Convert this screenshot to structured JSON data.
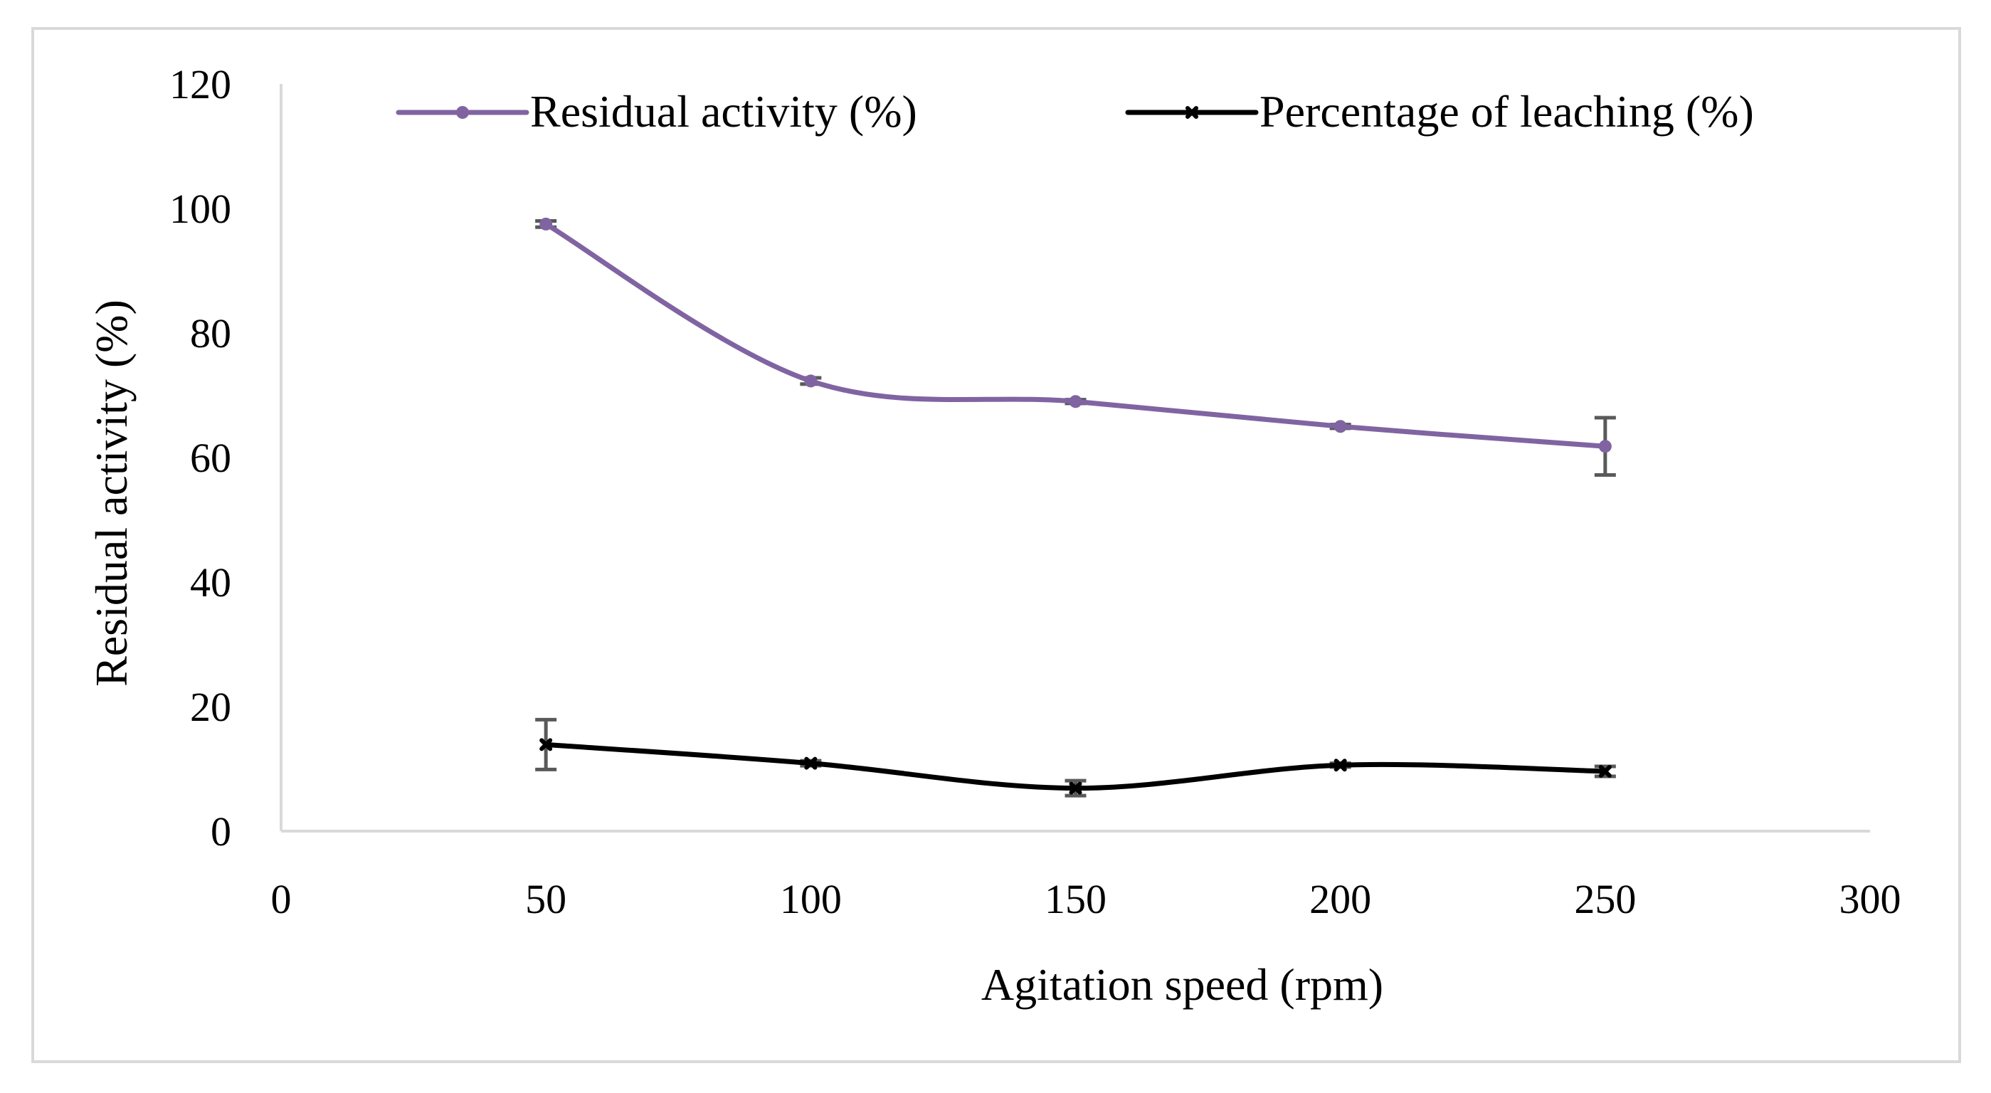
{
  "chart_data": {
    "type": "line",
    "title": "",
    "xlabel": "Agitation speed (rpm)",
    "ylabel": "Residual activity (%)",
    "xlim": [
      0,
      300
    ],
    "ylim": [
      0,
      120
    ],
    "xticks": [
      0,
      50,
      100,
      150,
      200,
      250,
      300
    ],
    "yticks": [
      0,
      20,
      40,
      60,
      80,
      100,
      120
    ],
    "grid": false,
    "legend_position": "top",
    "smooth": true,
    "series": [
      {
        "name": "Residual activity (%)",
        "color": "#8064a2",
        "marker": "circle",
        "x": [
          50,
          100,
          150,
          200,
          250
        ],
        "y": [
          97.5,
          72.3,
          69.0,
          65.0,
          61.8
        ],
        "error": [
          0.5,
          0.5,
          0.3,
          0.3,
          4.6
        ]
      },
      {
        "name": "Percentage of leaching (%)",
        "color": "#000000",
        "marker": "x",
        "x": [
          50,
          100,
          150,
          200,
          250
        ],
        "y": [
          13.9,
          10.9,
          6.9,
          10.6,
          9.6
        ],
        "error": [
          4.0,
          0.4,
          1.2,
          0.3,
          0.8
        ]
      }
    ]
  }
}
